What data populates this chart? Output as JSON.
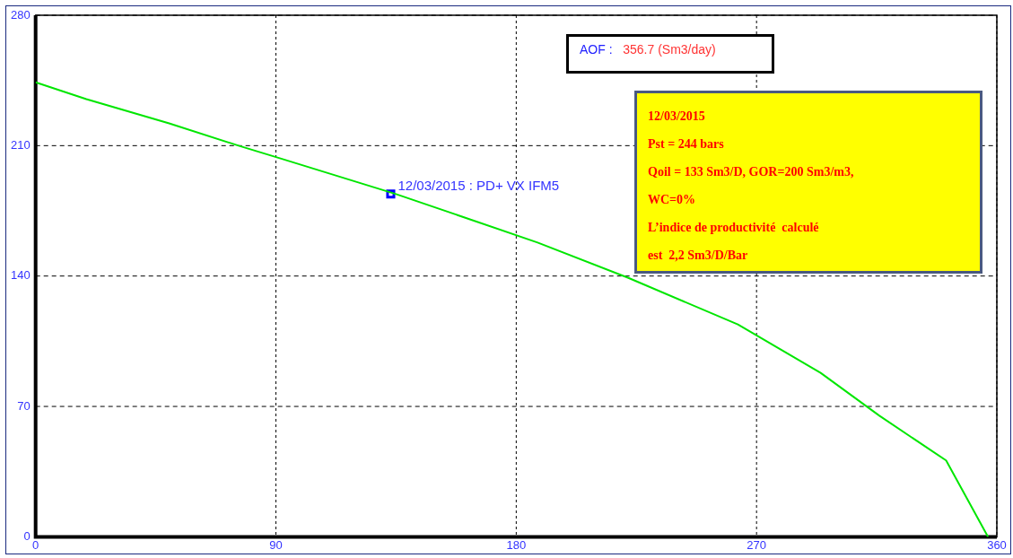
{
  "chart_data": {
    "type": "line",
    "series": [
      {
        "color": "#00e600",
        "marker": "none",
        "line_style": "solid",
        "x": [
          0,
          19,
          50,
          76,
          92,
          135,
          188,
          222,
          263,
          294,
          316,
          341,
          356.7
        ],
        "values": [
          244,
          235,
          222,
          210,
          203,
          184,
          158,
          139,
          114,
          88,
          65,
          41,
          0
        ]
      },
      {
        "type": "scatter",
        "color": "#0000ff",
        "marker": "square",
        "x": [
          133
        ],
        "values": [
          184
        ]
      }
    ],
    "xlim": [
      0,
      360
    ],
    "xticks": [
      0,
      90,
      180,
      270,
      360
    ],
    "ylim": [
      0,
      280
    ],
    "yticks": [
      0,
      70,
      140,
      210,
      280
    ],
    "grid": true,
    "legend": false,
    "annotations": [
      {
        "text": "12/03/2015 : PD+ VX IFM5",
        "x": 133,
        "y": 184
      },
      "AOF :   356.7 (Sm3/day)",
      "12/03/2015",
      "Pst = 244 bars",
      "Qoil = 133 Sm3/D, GOR=200 Sm3/m3,",
      "WC=0%",
      "L’indice de productivité  calculé",
      "est  2,2 Sm3/D/Bar"
    ]
  }
}
